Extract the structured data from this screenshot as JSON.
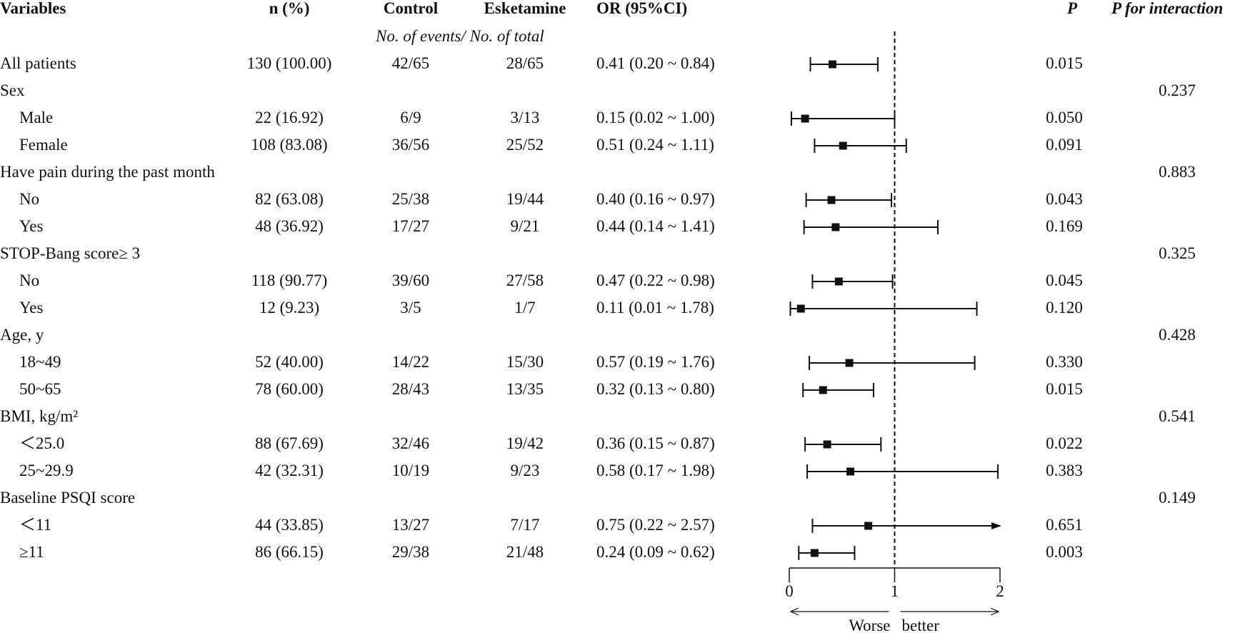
{
  "headers": {
    "variables": "Variables",
    "n": "n (%)",
    "control": "Control",
    "esketamine": "Esketamine",
    "or": "OR (95%CI)",
    "p": "P",
    "p_interaction": "P for interaction",
    "subheader": "No. of events/ No. of total"
  },
  "rows": [
    {
      "label": "All patients",
      "indent": false,
      "n": "130 (100.00)",
      "control": "42/65",
      "esketamine": "28/65",
      "or_text": "0.41 (0.20 ~ 0.84)",
      "p": "0.015",
      "p_int": ""
    },
    {
      "label": "Sex",
      "indent": false,
      "n": "",
      "control": "",
      "esketamine": "",
      "or_text": "",
      "p": "",
      "p_int": "0.237"
    },
    {
      "label": "Male",
      "indent": true,
      "n": "22 (16.92)",
      "control": "6/9",
      "esketamine": "3/13",
      "or_text": "0.15 (0.02 ~ 1.00)",
      "p": "0.050",
      "p_int": ""
    },
    {
      "label": "Female",
      "indent": true,
      "n": "108 (83.08)",
      "control": "36/56",
      "esketamine": "25/52",
      "or_text": "0.51 (0.24 ~ 1.11)",
      "p": "0.091",
      "p_int": ""
    },
    {
      "label": "Have pain during the past month",
      "indent": false,
      "n": "",
      "control": "",
      "esketamine": "",
      "or_text": "",
      "p": "",
      "p_int": "0.883"
    },
    {
      "label": "No",
      "indent": true,
      "n": "82 (63.08)",
      "control": "25/38",
      "esketamine": "19/44",
      "or_text": "0.40 (0.16 ~ 0.97)",
      "p": "0.043",
      "p_int": ""
    },
    {
      "label": "Yes",
      "indent": true,
      "n": "48 (36.92)",
      "control": "17/27",
      "esketamine": "9/21",
      "or_text": "0.44 (0.14 ~ 1.41)",
      "p": "0.169",
      "p_int": ""
    },
    {
      "label": "STOP-Bang score≥ 3",
      "indent": false,
      "n": "",
      "control": "",
      "esketamine": "",
      "or_text": "",
      "p": "",
      "p_int": "0.325"
    },
    {
      "label": "No",
      "indent": true,
      "n": "118 (90.77)",
      "control": "39/60",
      "esketamine": "27/58",
      "or_text": "0.47 (0.22 ~ 0.98)",
      "p": "0.045",
      "p_int": ""
    },
    {
      "label": "Yes",
      "indent": true,
      "n": "12 (9.23)",
      "control": "3/5",
      "esketamine": "1/7",
      "or_text": "0.11 (0.01 ~ 1.78)",
      "p": "0.120",
      "p_int": ""
    },
    {
      "label": "Age, y",
      "indent": false,
      "n": "",
      "control": "",
      "esketamine": "",
      "or_text": "",
      "p": "",
      "p_int": "0.428"
    },
    {
      "label": "18~49",
      "indent": true,
      "n": "52 (40.00)",
      "control": "14/22",
      "esketamine": "15/30",
      "or_text": "0.57 (0.19 ~ 1.76)",
      "p": "0.330",
      "p_int": ""
    },
    {
      "label": "50~65",
      "indent": true,
      "n": "78 (60.00)",
      "control": "28/43",
      "esketamine": "13/35",
      "or_text": "0.32 (0.13 ~ 0.80)",
      "p": "0.015",
      "p_int": ""
    },
    {
      "label": "BMI, kg/m²",
      "indent": false,
      "n": "",
      "control": "",
      "esketamine": "",
      "or_text": "",
      "p": "",
      "p_int": "0.541"
    },
    {
      "label": "＜25.0",
      "indent": true,
      "n": "88 (67.69)",
      "control": "32/46",
      "esketamine": "19/42",
      "or_text": "0.36 (0.15 ~ 0.87)",
      "p": "0.022",
      "p_int": ""
    },
    {
      "label": "25~29.9",
      "indent": true,
      "n": "42 (32.31)",
      "control": "10/19",
      "esketamine": "9/23",
      "or_text": "0.58 (0.17 ~ 1.98)",
      "p": "0.383",
      "p_int": ""
    },
    {
      "label": "Baseline PSQI score",
      "indent": false,
      "n": "",
      "control": "",
      "esketamine": "",
      "or_text": "",
      "p": "",
      "p_int": "0.149"
    },
    {
      "label": "＜11",
      "indent": true,
      "n": "44 (33.85)",
      "control": "13/27",
      "esketamine": "7/17",
      "or_text": "0.75 (0.22 ~ 2.57)",
      "p": "0.651",
      "p_int": ""
    },
    {
      "label": "≥11",
      "indent": true,
      "n": "86 (66.15)",
      "control": "29/38",
      "esketamine": "21/48",
      "or_text": "0.24 (0.09 ~ 0.62)",
      "p": "0.003",
      "p_int": ""
    }
  ],
  "chart_data": {
    "type": "scatter",
    "subtype": "forest",
    "xlim": [
      0,
      2
    ],
    "xticks": [
      "0",
      "1",
      "2"
    ],
    "reference_line": 1,
    "left_label": "Worse",
    "right_label": "better",
    "points": [
      {
        "row": 0,
        "or": 0.41,
        "lo": 0.2,
        "hi": 0.84,
        "arrow": false
      },
      {
        "row": 2,
        "or": 0.15,
        "lo": 0.02,
        "hi": 1.0,
        "arrow": false
      },
      {
        "row": 3,
        "or": 0.51,
        "lo": 0.24,
        "hi": 1.11,
        "arrow": false
      },
      {
        "row": 5,
        "or": 0.4,
        "lo": 0.16,
        "hi": 0.97,
        "arrow": false
      },
      {
        "row": 6,
        "or": 0.44,
        "lo": 0.14,
        "hi": 1.41,
        "arrow": false
      },
      {
        "row": 8,
        "or": 0.47,
        "lo": 0.22,
        "hi": 0.98,
        "arrow": false
      },
      {
        "row": 9,
        "or": 0.11,
        "lo": 0.01,
        "hi": 1.78,
        "arrow": false
      },
      {
        "row": 11,
        "or": 0.57,
        "lo": 0.19,
        "hi": 1.76,
        "arrow": false
      },
      {
        "row": 12,
        "or": 0.32,
        "lo": 0.13,
        "hi": 0.8,
        "arrow": false
      },
      {
        "row": 14,
        "or": 0.36,
        "lo": 0.15,
        "hi": 0.87,
        "arrow": false
      },
      {
        "row": 15,
        "or": 0.58,
        "lo": 0.17,
        "hi": 1.98,
        "arrow": false
      },
      {
        "row": 17,
        "or": 0.75,
        "lo": 0.22,
        "hi": 2.57,
        "arrow": true
      },
      {
        "row": 18,
        "or": 0.24,
        "lo": 0.09,
        "hi": 0.62,
        "arrow": false
      }
    ]
  }
}
